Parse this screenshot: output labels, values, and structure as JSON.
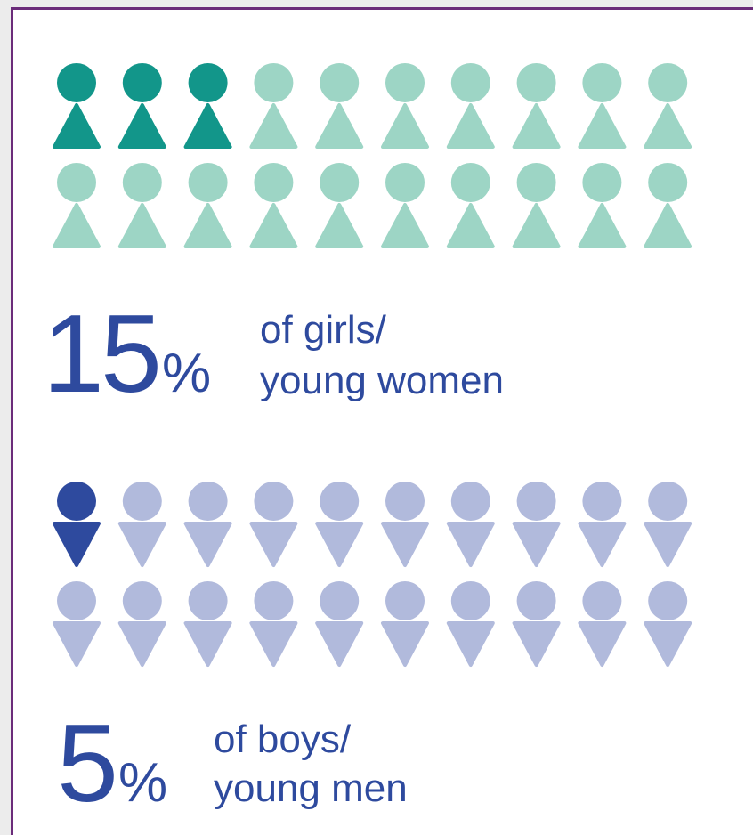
{
  "chart_data": [
    {
      "type": "pictogram",
      "value": 15,
      "unit": "%",
      "label_lines": [
        "of girls/",
        "young women"
      ],
      "icons": 20,
      "shape": "triangle-up",
      "highlight_color": "#12968a",
      "base_color": "#9dd5c5",
      "text_color": "#2e4a9e"
    },
    {
      "type": "pictogram",
      "value": 5,
      "unit": "%",
      "label_lines": [
        "of boys/",
        "young men"
      ],
      "icons": 20,
      "shape": "triangle-down",
      "highlight_color": "#2e4a9e",
      "base_color": "#b1badc",
      "text_color": "#2e4a9e"
    }
  ]
}
